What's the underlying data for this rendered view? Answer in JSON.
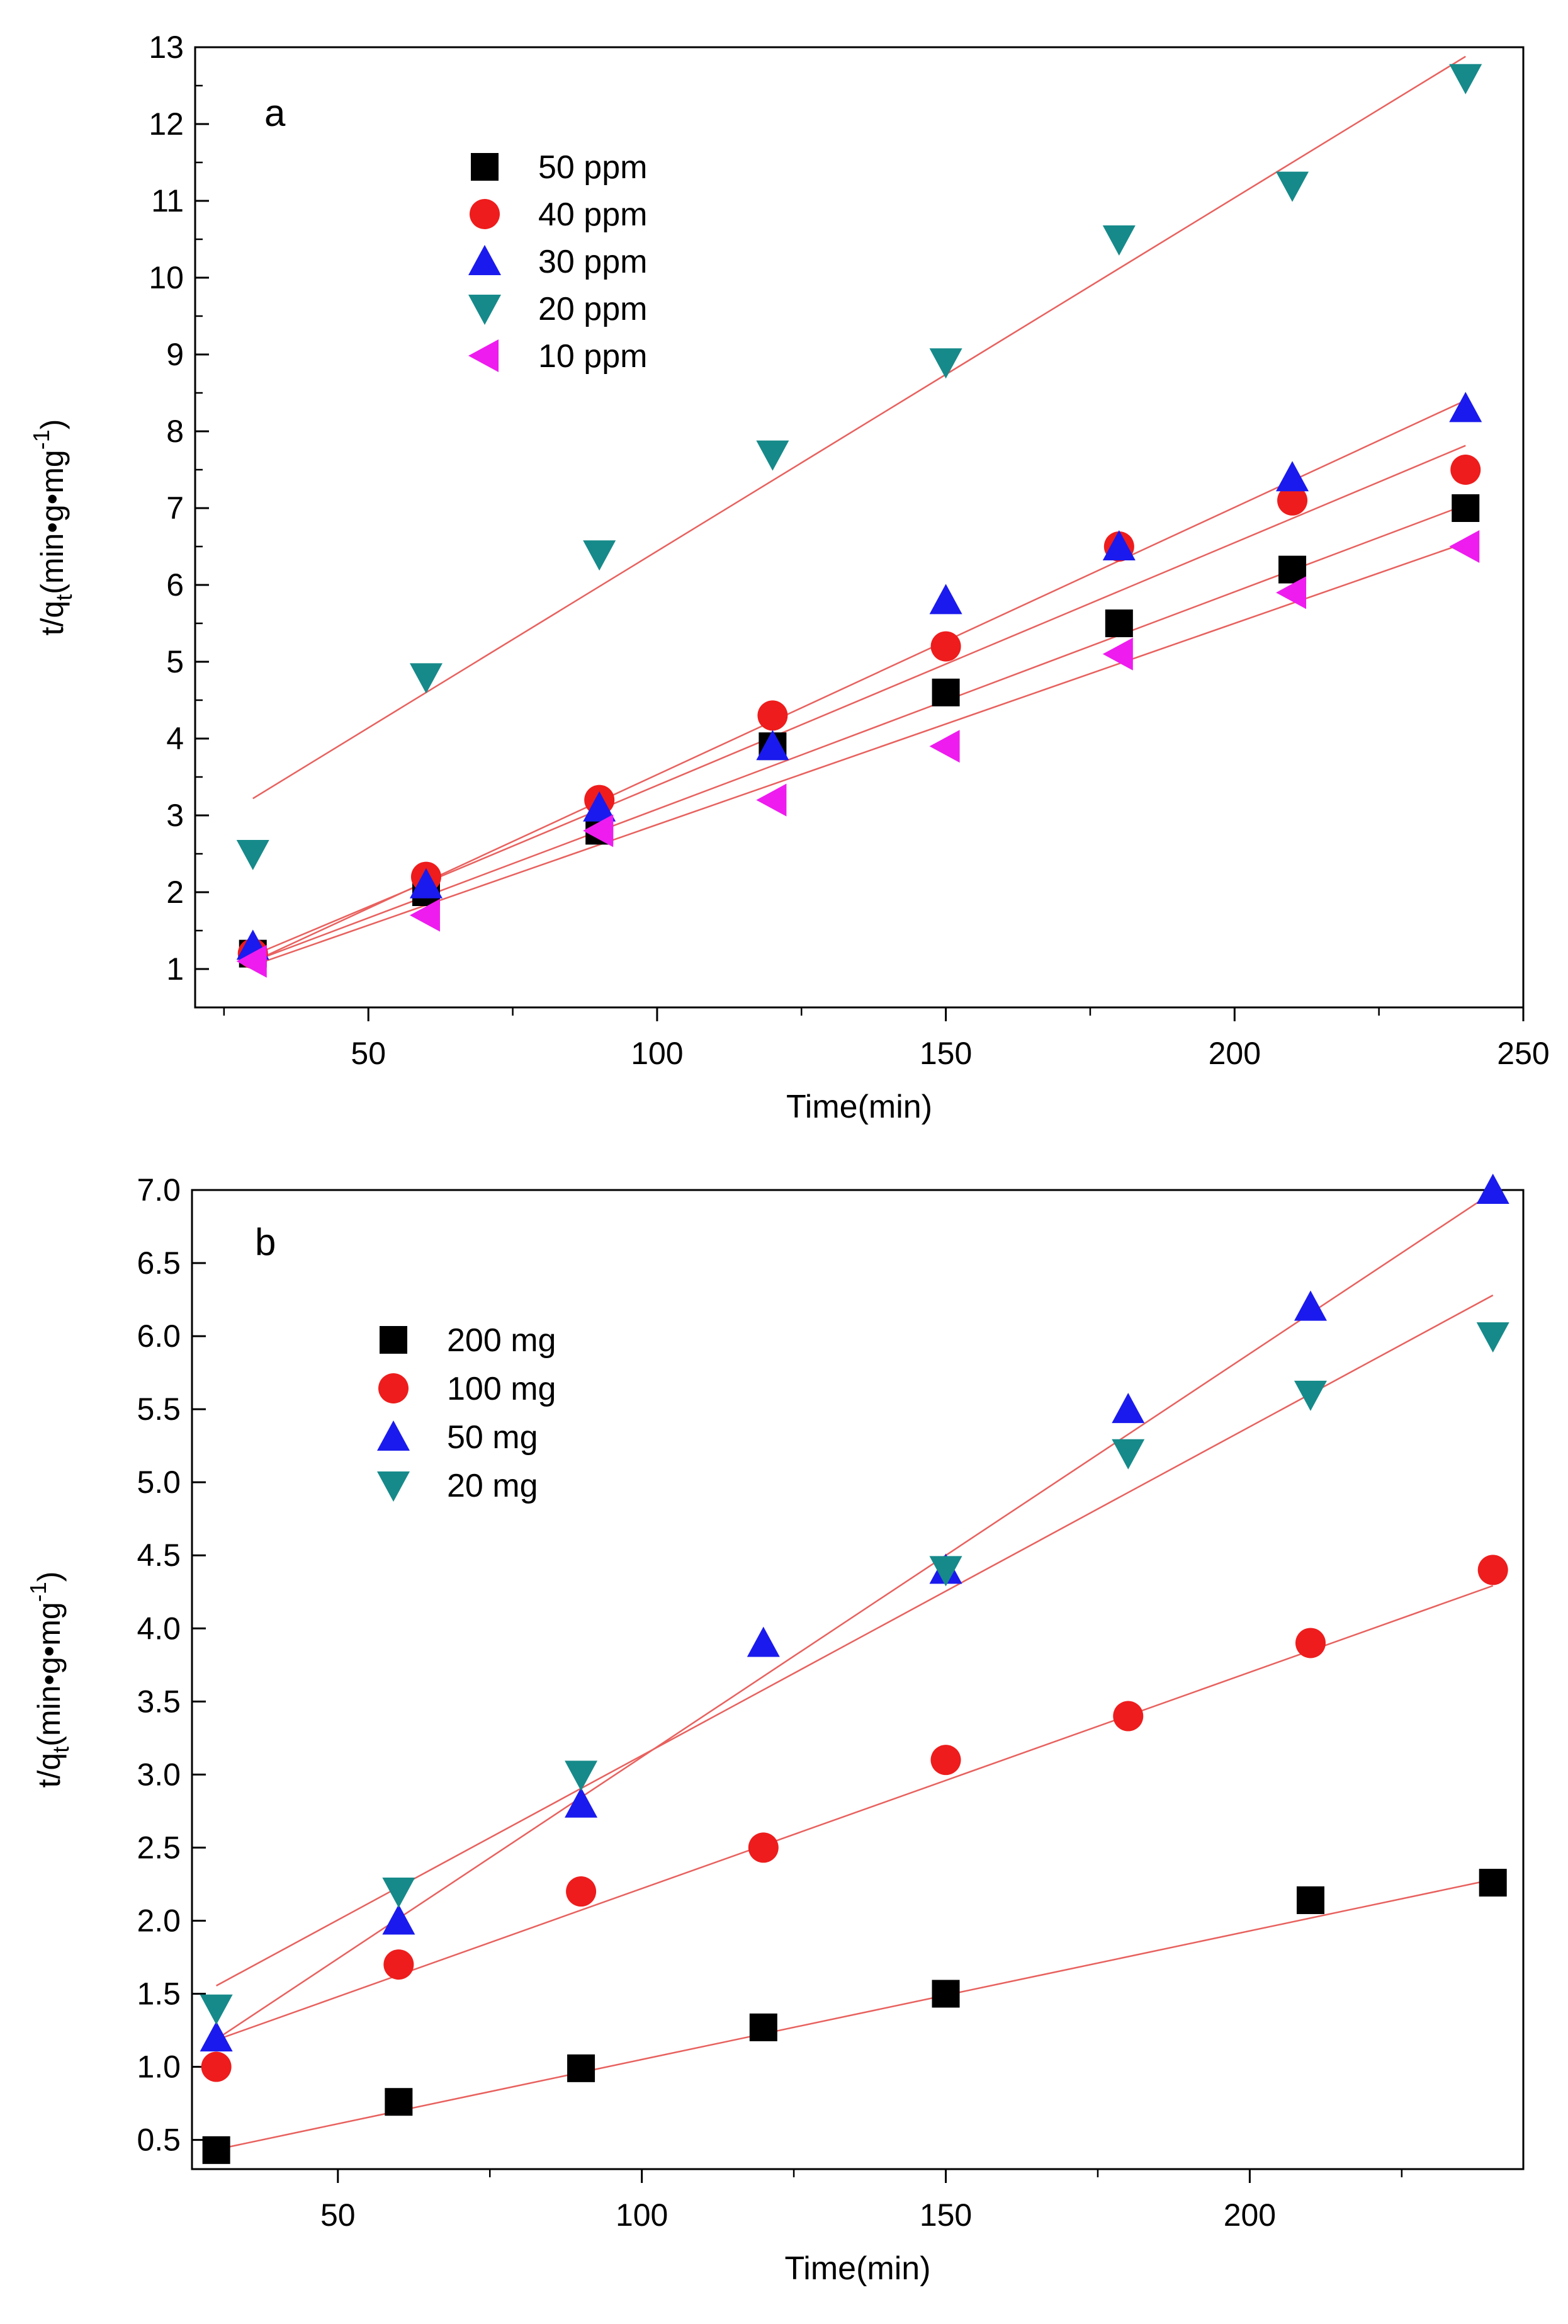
{
  "chart_data": [
    {
      "panel_label": "a",
      "type": "scatter",
      "xlabel": "Time(min)",
      "ylabel_main": "t/q",
      "ylabel_sub": "t",
      "ylabel_unit": "(min•g•mg",
      "ylabel_sup": "-1",
      "ylabel_close": ")",
      "xlim": [
        20,
        250
      ],
      "ylim": [
        0.5,
        13
      ],
      "xticks": [
        50,
        100,
        150,
        200,
        250
      ],
      "yticks": [
        1,
        2,
        3,
        4,
        5,
        6,
        7,
        8,
        9,
        10,
        11,
        12,
        13
      ],
      "legend_position": "top-left",
      "fit_color": "#e8615e",
      "series": [
        {
          "name": "50 ppm",
          "marker": "square",
          "color": "#000000",
          "x": [
            30,
            60,
            90,
            120,
            150,
            180,
            210,
            240
          ],
          "y": [
            1.2,
            2.0,
            2.8,
            3.9,
            4.6,
            5.5,
            6.2,
            7.0
          ],
          "fit": [
            0.25,
            0.0283
          ]
        },
        {
          "name": "40 ppm",
          "marker": "circle",
          "color": "#ee1c1c",
          "x": [
            30,
            60,
            90,
            120,
            150,
            180,
            210,
            240
          ],
          "y": [
            1.2,
            2.2,
            3.2,
            4.3,
            5.2,
            6.5,
            7.1,
            7.5
          ],
          "fit": [
            0.23,
            0.0316
          ]
        },
        {
          "name": "30 ppm",
          "marker": "triangle-up",
          "color": "#1a1aee",
          "x": [
            30,
            60,
            90,
            120,
            150,
            180,
            210,
            240
          ],
          "y": [
            1.3,
            2.1,
            3.1,
            3.9,
            5.8,
            6.5,
            7.4,
            8.3
          ],
          "fit": [
            0.05,
            0.0348
          ]
        },
        {
          "name": "20 ppm",
          "marker": "triangle-down",
          "color": "#168a8a",
          "x": [
            30,
            60,
            90,
            120,
            150,
            180,
            210,
            240
          ],
          "y": [
            2.5,
            4.8,
            6.4,
            7.7,
            8.9,
            10.5,
            11.2,
            12.6
          ],
          "fit": [
            1.84,
            0.046
          ]
        },
        {
          "name": "10 ppm",
          "marker": "triangle-left",
          "color": "#ee1cee",
          "x": [
            30,
            60,
            90,
            120,
            150,
            180,
            210,
            240
          ],
          "y": [
            1.1,
            1.7,
            2.8,
            3.2,
            3.9,
            5.1,
            5.9,
            6.5
          ],
          "fit": [
            0.26,
            0.0262
          ]
        }
      ]
    },
    {
      "panel_label": "b",
      "type": "scatter",
      "xlabel": "Time(min)",
      "ylabel_main": "t/q",
      "ylabel_sub": "t",
      "ylabel_unit": "(min•g•mg",
      "ylabel_sup": "-1",
      "ylabel_close": ")",
      "xlim": [
        26,
        245
      ],
      "ylim": [
        0.3,
        7.0
      ],
      "xticks": [
        50,
        100,
        150,
        200
      ],
      "yticks": [
        "0.5",
        "1.0",
        "1.5",
        "2.0",
        "2.5",
        "3.0",
        "3.5",
        "4.0",
        "4.5",
        "5.0",
        "5.5",
        "6.0",
        "6.5",
        "7.0"
      ],
      "legend_position": "top-left",
      "fit_color": "#e8615e",
      "series": [
        {
          "name": "200 mg",
          "marker": "square",
          "color": "#000000",
          "x": [
            30,
            60,
            90,
            120,
            150,
            210,
            240
          ],
          "y": [
            0.43,
            0.76,
            0.99,
            1.27,
            1.5,
            2.14,
            2.26
          ],
          "fit": [
            0.17,
            0.0088
          ]
        },
        {
          "name": "100 mg",
          "marker": "circle",
          "color": "#ee1c1c",
          "x": [
            30,
            60,
            90,
            120,
            150,
            180,
            210,
            240
          ],
          "y": [
            1.0,
            1.7,
            2.2,
            2.5,
            3.1,
            3.4,
            3.9,
            4.4
          ],
          "fit": [
            0.74,
            0.0148
          ]
        },
        {
          "name": "50 mg",
          "marker": "triangle-up",
          "color": "#1a1aee",
          "x": [
            30,
            60,
            90,
            120,
            150,
            180,
            210,
            240
          ],
          "y": [
            1.2,
            2.0,
            2.8,
            3.9,
            4.4,
            5.5,
            6.2,
            7.0
          ],
          "fit": [
            0.36,
            0.0276
          ]
        },
        {
          "name": "20 mg",
          "marker": "triangle-down",
          "color": "#168a8a",
          "x": [
            30,
            60,
            90,
            150,
            180,
            210,
            240
          ],
          "y": [
            1.4,
            2.2,
            3.0,
            4.4,
            5.2,
            5.6,
            6.0
          ],
          "fit": [
            0.88,
            0.0225
          ]
        }
      ]
    }
  ]
}
